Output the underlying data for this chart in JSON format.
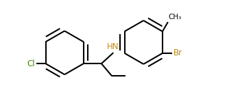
{
  "bg_color": "#ffffff",
  "line_color": "#000000",
  "bond_width": 1.5,
  "cl_color": "#3a8c00",
  "br_color": "#b8860b",
  "hn_color": "#cc8800",
  "fig_width": 3.66,
  "fig_height": 1.45,
  "dpi": 100,
  "xlim": [
    0,
    10
  ],
  "ylim": [
    0,
    3.96
  ]
}
